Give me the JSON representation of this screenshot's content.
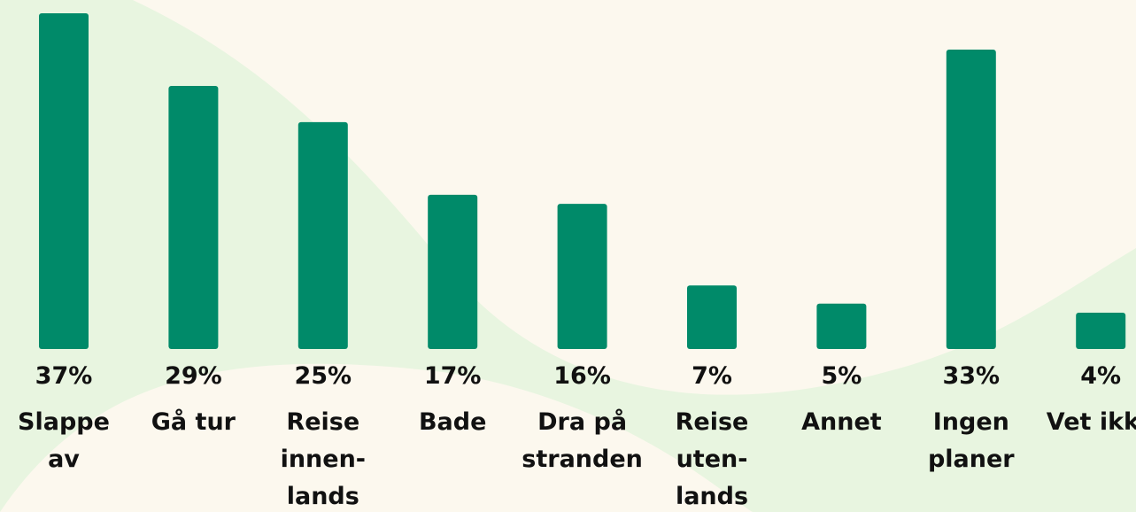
{
  "chart_data": {
    "type": "bar",
    "categories": [
      "Slappe av",
      "Gå tur",
      "Reise innen-lands",
      "Bade",
      "Dra på stranden",
      "Reise uten-lands",
      "Annet",
      "Ingen planer",
      "Vet ikke"
    ],
    "values": [
      37,
      29,
      25,
      17,
      16,
      7,
      5,
      33,
      4
    ],
    "value_labels": [
      "37%",
      "29%",
      "25%",
      "17%",
      "16%",
      "7%",
      "5%",
      "33%",
      "4%"
    ],
    "color": "#008a69"
  }
}
